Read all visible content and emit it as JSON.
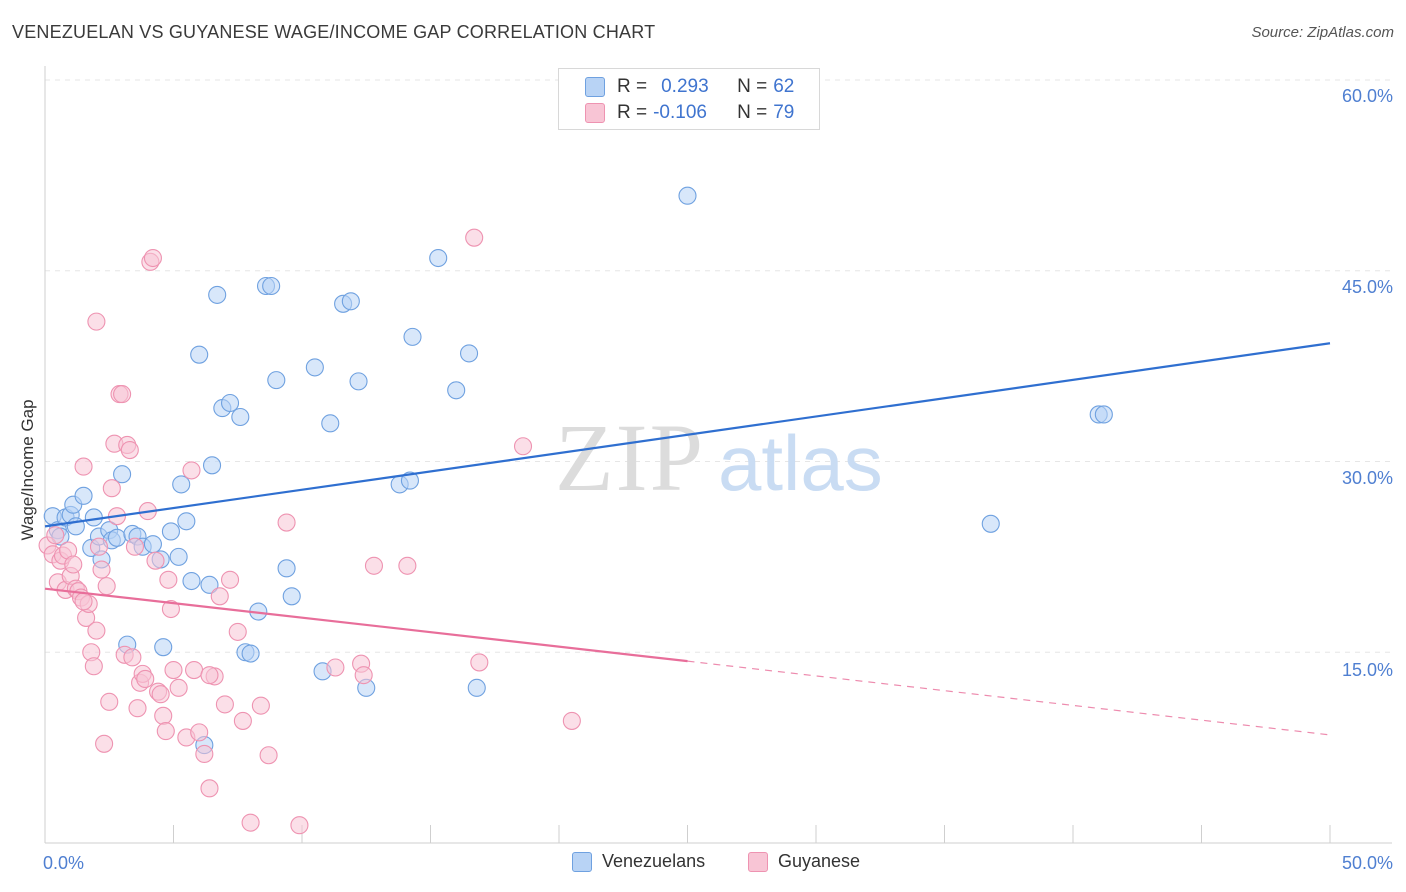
{
  "header": {
    "title": "VENEZUELAN VS GUYANESE WAGE/INCOME GAP CORRELATION CHART",
    "source": "Source: ZipAtlas.com"
  },
  "legend": {
    "venezuelans": {
      "r_label": "R =",
      "r_value": "0.293",
      "n_label": "N =",
      "n_value": "62"
    },
    "guyanese": {
      "r_label": "R =",
      "r_value": "-0.106",
      "n_label": "N =",
      "n_value": "79"
    }
  },
  "colors": {
    "venezuelans_fill": "#b8d3f5",
    "venezuelans_stroke": "#6fa1e0",
    "venezuelans_line": "#2f6fd0",
    "guyanese_fill": "#f8c5d5",
    "guyanese_stroke": "#ee93b1",
    "guyanese_line": "#e86e9a",
    "tick_text": "#4f7fd1",
    "grid": "#e6e6e6"
  },
  "chart_data": {
    "type": "scatter",
    "title": "VENEZUELAN VS GUYANESE WAGE/INCOME GAP CORRELATION CHART",
    "xlabel": "",
    "ylabel": "Wage/Income Gap",
    "xlim": [
      0,
      50
    ],
    "ylim": [
      0,
      60
    ],
    "x_tick_labels": [
      "0.0%",
      "50.0%"
    ],
    "y_ticks": [
      15,
      30,
      45,
      60
    ],
    "y_tick_labels": [
      "15.0%",
      "30.0%",
      "45.0%",
      "60.0%"
    ],
    "grid": true,
    "legend_position": "top-center",
    "bottom_legend": [
      "Venezuelans",
      "Guyanese"
    ],
    "series": [
      {
        "name": "Venezuelans",
        "trend": {
          "x": [
            0,
            50
          ],
          "y": [
            24.9,
            39.3
          ],
          "style": "solid"
        },
        "points": [
          [
            0.3,
            25.7
          ],
          [
            0.5,
            24.6
          ],
          [
            0.8,
            25.6
          ],
          [
            1.0,
            25.8
          ],
          [
            1.1,
            26.6
          ],
          [
            1.2,
            24.9
          ],
          [
            1.5,
            27.3
          ],
          [
            1.8,
            23.2
          ],
          [
            1.9,
            25.6
          ],
          [
            2.1,
            24.1
          ],
          [
            2.2,
            22.3
          ],
          [
            2.5,
            24.6
          ],
          [
            2.6,
            23.8
          ],
          [
            2.8,
            24.0
          ],
          [
            3.0,
            29.0
          ],
          [
            3.2,
            15.6
          ],
          [
            3.4,
            24.3
          ],
          [
            3.6,
            24.1
          ],
          [
            3.8,
            23.3
          ],
          [
            4.2,
            23.5
          ],
          [
            4.5,
            22.3
          ],
          [
            4.6,
            15.4
          ],
          [
            4.9,
            24.5
          ],
          [
            5.2,
            22.5
          ],
          [
            5.3,
            28.2
          ],
          [
            5.5,
            25.3
          ],
          [
            5.7,
            20.6
          ],
          [
            6.0,
            38.4
          ],
          [
            6.2,
            7.7
          ],
          [
            6.4,
            20.3
          ],
          [
            6.5,
            29.7
          ],
          [
            6.7,
            43.1
          ],
          [
            6.9,
            34.2
          ],
          [
            7.2,
            34.6
          ],
          [
            7.6,
            33.5
          ],
          [
            7.8,
            15.0
          ],
          [
            8.0,
            14.9
          ],
          [
            8.3,
            18.2
          ],
          [
            8.6,
            43.8
          ],
          [
            8.8,
            43.8
          ],
          [
            9.0,
            36.4
          ],
          [
            9.4,
            21.6
          ],
          [
            9.6,
            19.4
          ],
          [
            10.5,
            37.4
          ],
          [
            10.8,
            13.5
          ],
          [
            11.1,
            33.0
          ],
          [
            11.6,
            42.4
          ],
          [
            11.9,
            42.6
          ],
          [
            12.2,
            36.3
          ],
          [
            12.5,
            12.2
          ],
          [
            13.8,
            28.2
          ],
          [
            14.2,
            28.5
          ],
          [
            14.3,
            39.8
          ],
          [
            15.3,
            46.0
          ],
          [
            16.0,
            35.6
          ],
          [
            16.5,
            38.5
          ],
          [
            16.8,
            12.2
          ],
          [
            25.0,
            50.9
          ],
          [
            36.8,
            25.1
          ],
          [
            41.0,
            33.7
          ],
          [
            41.2,
            33.7
          ],
          [
            0.6,
            24.1
          ]
        ]
      },
      {
        "name": "Guyanese",
        "trend": {
          "x": [
            0,
            25
          ],
          "y": [
            20.0,
            14.3
          ],
          "style": "solid",
          "extended": {
            "x": [
              25,
              50
            ],
            "y": [
              14.3,
              8.5
            ],
            "style": "dashed"
          }
        },
        "points": [
          [
            0.1,
            23.4
          ],
          [
            0.3,
            22.7
          ],
          [
            0.4,
            24.2
          ],
          [
            0.5,
            20.5
          ],
          [
            0.6,
            22.2
          ],
          [
            0.7,
            22.6
          ],
          [
            0.8,
            19.9
          ],
          [
            0.9,
            23.0
          ],
          [
            1.0,
            21.0
          ],
          [
            1.1,
            21.9
          ],
          [
            1.2,
            20.0
          ],
          [
            1.3,
            19.8
          ],
          [
            1.4,
            19.3
          ],
          [
            1.5,
            29.6
          ],
          [
            1.6,
            17.7
          ],
          [
            1.7,
            18.8
          ],
          [
            1.8,
            15.0
          ],
          [
            1.9,
            13.9
          ],
          [
            2.0,
            16.7
          ],
          [
            2.1,
            23.3
          ],
          [
            2.2,
            21.5
          ],
          [
            2.3,
            7.8
          ],
          [
            2.4,
            20.2
          ],
          [
            2.5,
            11.1
          ],
          [
            2.6,
            27.9
          ],
          [
            2.7,
            31.4
          ],
          [
            2.8,
            25.7
          ],
          [
            2.9,
            35.3
          ],
          [
            3.0,
            35.3
          ],
          [
            3.1,
            14.8
          ],
          [
            3.2,
            31.3
          ],
          [
            3.3,
            30.9
          ],
          [
            3.4,
            14.6
          ],
          [
            3.5,
            23.3
          ],
          [
            3.6,
            10.6
          ],
          [
            3.7,
            12.6
          ],
          [
            3.8,
            13.3
          ],
          [
            3.9,
            12.9
          ],
          [
            4.0,
            26.1
          ],
          [
            4.1,
            45.7
          ],
          [
            4.2,
            46.0
          ],
          [
            4.3,
            22.2
          ],
          [
            4.4,
            11.9
          ],
          [
            4.5,
            11.7
          ],
          [
            4.6,
            10.0
          ],
          [
            4.7,
            8.8
          ],
          [
            4.8,
            20.7
          ],
          [
            4.9,
            18.4
          ],
          [
            5.0,
            13.6
          ],
          [
            5.2,
            12.2
          ],
          [
            5.5,
            8.3
          ],
          [
            5.7,
            29.3
          ],
          [
            5.8,
            13.6
          ],
          [
            6.0,
            8.7
          ],
          [
            6.2,
            7.0
          ],
          [
            6.4,
            4.3
          ],
          [
            6.6,
            13.1
          ],
          [
            6.8,
            19.4
          ],
          [
            7.0,
            10.9
          ],
          [
            7.2,
            20.7
          ],
          [
            7.5,
            16.6
          ],
          [
            7.7,
            9.6
          ],
          [
            8.0,
            1.6
          ],
          [
            8.4,
            10.8
          ],
          [
            8.7,
            6.9
          ],
          [
            9.4,
            25.2
          ],
          [
            9.9,
            1.4
          ],
          [
            11.3,
            13.8
          ],
          [
            12.3,
            14.1
          ],
          [
            12.4,
            13.2
          ],
          [
            12.8,
            21.8
          ],
          [
            14.1,
            21.8
          ],
          [
            16.7,
            47.6
          ],
          [
            16.9,
            14.2
          ],
          [
            18.6,
            31.2
          ],
          [
            20.5,
            9.6
          ],
          [
            2.0,
            41.0
          ],
          [
            6.4,
            13.2
          ],
          [
            1.5,
            19.0
          ]
        ]
      }
    ]
  }
}
